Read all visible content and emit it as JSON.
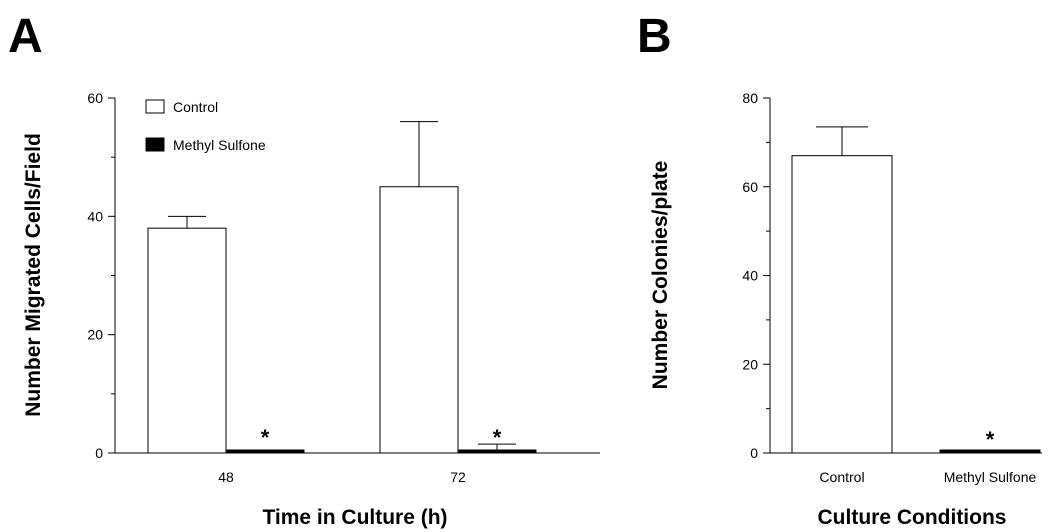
{
  "panels": {
    "a_label": "A",
    "b_label": "B"
  },
  "chart_data": [
    {
      "type": "bar",
      "panel": "A",
      "xlabel": "Time in Culture (h)",
      "ylabel": "Number Migrated Cells/Field",
      "ylim": [
        0,
        60
      ],
      "yticks": [
        0,
        20,
        40,
        60
      ],
      "categories": [
        "48",
        "72"
      ],
      "series": [
        {
          "name": "Control",
          "fill": "#ffffff",
          "values": [
            38,
            45
          ],
          "errors": [
            2,
            11
          ],
          "sig": [
            "",
            ""
          ]
        },
        {
          "name": "Methyl Sulfone",
          "fill": "#000000",
          "values": [
            0.4,
            0.4
          ],
          "errors": [
            0,
            1.1
          ],
          "sig": [
            "*",
            "*"
          ]
        }
      ],
      "legend": "top-left"
    },
    {
      "type": "bar",
      "panel": "B",
      "xlabel": "Culture Conditions",
      "ylabel": "Number Colonies/plate",
      "ylim": [
        0,
        80
      ],
      "yticks": [
        0,
        20,
        40,
        60,
        80
      ],
      "categories": [
        "Control",
        "Methyl Sulfone"
      ],
      "values": [
        67,
        0.6
      ],
      "errors": [
        6.5,
        0
      ],
      "fills": [
        "#ffffff",
        "#000000"
      ],
      "sig": [
        "",
        "*"
      ]
    }
  ]
}
